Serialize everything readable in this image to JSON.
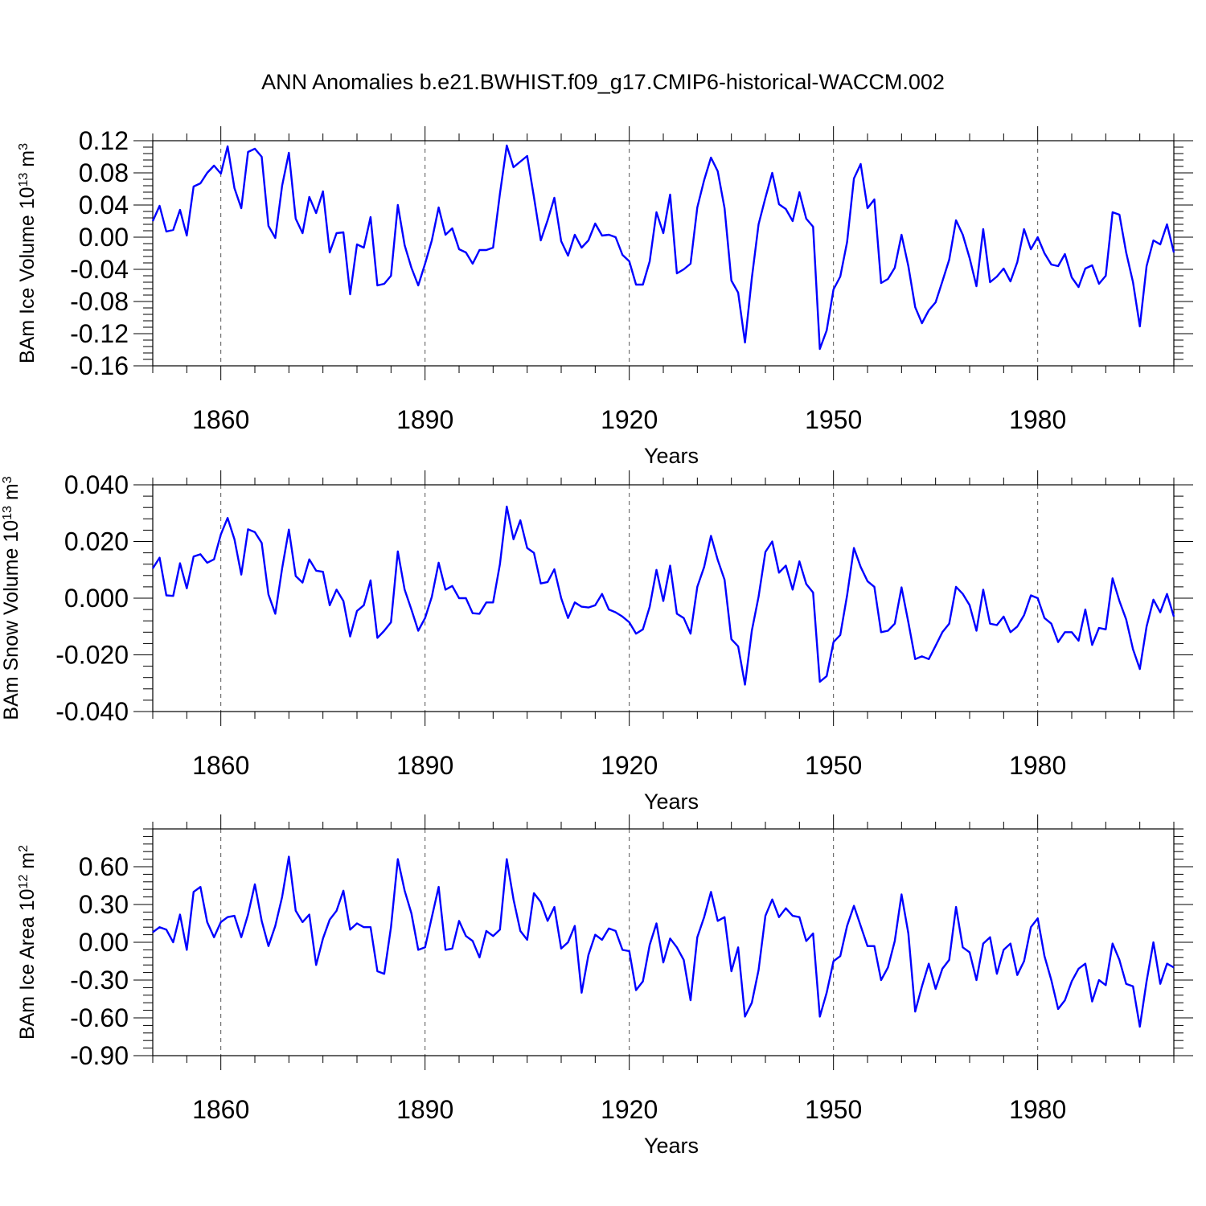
{
  "title": "ANN Anomalies b.e21.BWHIST.f09_g17.CMIP6-historical-WACCM.002",
  "colors": {
    "line": "#0000ff",
    "axis": "#000000",
    "grid": "#555555"
  },
  "chart_data": [
    {
      "type": "line",
      "name": "ice-volume",
      "ylabel_main": "BAm Ice Volume 10",
      "ylabel_sup": "13",
      "ylabel_unit": "m",
      "ylabel_unit_sup": "3",
      "xlabel": "Years",
      "xlim": [
        1850,
        2000
      ],
      "ylim": [
        -0.16,
        0.12
      ],
      "yticks": [
        -0.16,
        -0.12,
        -0.08,
        -0.04,
        0.0,
        0.04,
        0.08,
        0.12
      ],
      "ytick_labels": [
        "-0.16",
        "-0.12",
        "-0.08",
        "-0.04",
        "0.00",
        "0.04",
        "0.08",
        "0.12"
      ],
      "xticks": [
        1860,
        1890,
        1920,
        1950,
        1980
      ],
      "xtick_labels": [
        "1860",
        "1890",
        "1920",
        "1950",
        "1980"
      ],
      "x_start": 1850,
      "values": [
        0.02,
        0.039,
        0.007,
        0.009,
        0.034,
        0.002,
        0.063,
        0.067,
        0.08,
        0.089,
        0.079,
        0.113,
        0.061,
        0.036,
        0.106,
        0.11,
        0.1,
        0.014,
        -0.001,
        0.064,
        0.105,
        0.023,
        0.005,
        0.05,
        0.03,
        0.057,
        -0.019,
        0.005,
        0.006,
        -0.071,
        -0.009,
        -0.013,
        0.025,
        -0.06,
        -0.058,
        -0.048,
        0.04,
        -0.01,
        -0.038,
        -0.06,
        -0.033,
        -0.004,
        0.037,
        0.003,
        0.011,
        -0.015,
        -0.019,
        -0.033,
        -0.016,
        -0.016,
        -0.013,
        0.054,
        0.114,
        0.087,
        0.094,
        0.101,
        0.05,
        -0.004,
        0.021,
        0.049,
        -0.005,
        -0.023,
        0.003,
        -0.013,
        -0.004,
        0.017,
        0.002,
        0.003,
        0.0,
        -0.022,
        -0.03,
        -0.059,
        -0.059,
        -0.03,
        0.031,
        0.005,
        0.053,
        -0.045,
        -0.04,
        -0.033,
        0.037,
        0.071,
        0.099,
        0.082,
        0.036,
        -0.054,
        -0.069,
        -0.131,
        -0.051,
        0.016,
        0.049,
        0.08,
        0.041,
        0.035,
        0.02,
        0.056,
        0.023,
        0.013,
        -0.139,
        -0.116,
        -0.065,
        -0.049,
        -0.006,
        0.073,
        0.091,
        0.036,
        0.047,
        -0.057,
        -0.052,
        -0.038,
        0.003,
        -0.036,
        -0.087,
        -0.107,
        -0.091,
        -0.081,
        -0.055,
        -0.028,
        0.021,
        0.003,
        -0.026,
        -0.061,
        0.01,
        -0.056,
        -0.049,
        -0.039,
        -0.055,
        -0.031,
        0.01,
        -0.015,
        0.0,
        -0.02,
        -0.034,
        -0.036,
        -0.021,
        -0.05,
        -0.062,
        -0.039,
        -0.035,
        -0.058,
        -0.048,
        0.031,
        0.028,
        -0.019,
        -0.056,
        -0.111,
        -0.036,
        -0.004,
        -0.009,
        0.016,
        -0.019
      ]
    },
    {
      "type": "line",
      "name": "snow-volume",
      "ylabel_main": "BAm Snow Volume 10",
      "ylabel_sup": "13",
      "ylabel_unit": "m",
      "ylabel_unit_sup": "3",
      "xlabel": "Years",
      "xlim": [
        1850,
        2000
      ],
      "ylim": [
        -0.04,
        0.04
      ],
      "yticks": [
        -0.04,
        -0.02,
        0.0,
        0.02,
        0.04
      ],
      "ytick_labels": [
        "-0.040",
        "-0.020",
        "0.000",
        "0.020",
        "0.040"
      ],
      "xticks": [
        1860,
        1890,
        1920,
        1950,
        1980
      ],
      "xtick_labels": [
        "1860",
        "1890",
        "1920",
        "1950",
        "1980"
      ],
      "x_start": 1850,
      "values": [
        0.0105,
        0.0143,
        0.001,
        0.0008,
        0.0123,
        0.0035,
        0.0147,
        0.0155,
        0.0125,
        0.0137,
        0.0225,
        0.0283,
        0.0208,
        0.0083,
        0.0243,
        0.0233,
        0.0195,
        0.0013,
        -0.0055,
        0.0105,
        0.0242,
        0.0078,
        0.0055,
        0.0137,
        0.0097,
        0.0093,
        -0.0025,
        0.003,
        -0.001,
        -0.0135,
        -0.0045,
        -0.0025,
        0.0063,
        -0.014,
        -0.0115,
        -0.0085,
        0.0165,
        0.003,
        -0.004,
        -0.0115,
        -0.007,
        0.0005,
        0.0125,
        0.003,
        0.0043,
        0.0,
        0.0,
        -0.0053,
        -0.0055,
        -0.0015,
        -0.0015,
        0.012,
        0.0323,
        0.0208,
        0.0275,
        0.0177,
        0.016,
        0.0052,
        0.0057,
        0.0102,
        0.0,
        -0.007,
        -0.0015,
        -0.003,
        -0.0033,
        -0.0025,
        0.0015,
        -0.004,
        -0.005,
        -0.0065,
        -0.0085,
        -0.0125,
        -0.011,
        -0.003,
        0.01,
        -0.001,
        0.0115,
        -0.0055,
        -0.007,
        -0.0125,
        0.004,
        0.011,
        0.022,
        0.0135,
        0.0065,
        -0.0145,
        -0.017,
        -0.0305,
        -0.0115,
        0.0005,
        0.0163,
        0.02,
        0.009,
        0.0115,
        0.003,
        0.013,
        0.005,
        0.002,
        -0.0295,
        -0.0275,
        -0.0155,
        -0.013,
        0.001,
        0.0177,
        0.011,
        0.006,
        0.004,
        -0.012,
        -0.0115,
        -0.009,
        0.0038,
        -0.0085,
        -0.0215,
        -0.0205,
        -0.0215,
        -0.0168,
        -0.012,
        -0.009,
        0.004,
        0.0015,
        -0.0025,
        -0.0115,
        0.003,
        -0.009,
        -0.0095,
        -0.0065,
        -0.012,
        -0.01,
        -0.006,
        0.001,
        0.0,
        -0.007,
        -0.009,
        -0.0155,
        -0.012,
        -0.012,
        -0.015,
        -0.004,
        -0.0165,
        -0.0105,
        -0.011,
        0.007,
        -0.001,
        -0.0075,
        -0.018,
        -0.025,
        -0.01,
        -0.0005,
        -0.005,
        0.0015,
        -0.0065
      ]
    },
    {
      "type": "line",
      "name": "ice-area",
      "ylabel_main": "BAm Ice Area 10",
      "ylabel_sup": "12",
      "ylabel_unit": "m",
      "ylabel_unit_sup": "2",
      "xlabel": "Years",
      "xlim": [
        1850,
        2000
      ],
      "ylim": [
        -0.9,
        0.9
      ],
      "yticks": [
        -0.9,
        -0.6,
        -0.3,
        0.0,
        0.3,
        0.6
      ],
      "ytick_labels": [
        "-0.90",
        "-0.60",
        "-0.30",
        "0.00",
        "0.30",
        "0.60"
      ],
      "xticks": [
        1860,
        1890,
        1920,
        1950,
        1980
      ],
      "xtick_labels": [
        "1860",
        "1890",
        "1920",
        "1950",
        "1980"
      ],
      "x_start": 1850,
      "values": [
        0.08,
        0.12,
        0.1,
        0.0,
        0.22,
        -0.06,
        0.4,
        0.44,
        0.16,
        0.04,
        0.16,
        0.2,
        0.21,
        0.04,
        0.22,
        0.46,
        0.17,
        -0.03,
        0.13,
        0.36,
        0.68,
        0.25,
        0.16,
        0.22,
        -0.18,
        0.03,
        0.18,
        0.25,
        0.41,
        0.1,
        0.15,
        0.12,
        0.12,
        -0.23,
        -0.25,
        0.12,
        0.66,
        0.41,
        0.23,
        -0.06,
        -0.04,
        0.2,
        0.44,
        -0.06,
        -0.05,
        0.17,
        0.05,
        0.01,
        -0.12,
        0.09,
        0.05,
        0.1,
        0.66,
        0.34,
        0.09,
        0.02,
        0.39,
        0.32,
        0.17,
        0.28,
        -0.05,
        0.0,
        0.13,
        -0.4,
        -0.1,
        0.06,
        0.02,
        0.11,
        0.09,
        -0.06,
        -0.07,
        -0.38,
        -0.31,
        -0.02,
        0.15,
        -0.16,
        0.03,
        -0.04,
        -0.14,
        -0.46,
        0.04,
        0.2,
        0.4,
        0.17,
        0.2,
        -0.23,
        -0.04,
        -0.59,
        -0.48,
        -0.22,
        0.21,
        0.34,
        0.2,
        0.27,
        0.21,
        0.2,
        0.01,
        0.07,
        -0.59,
        -0.4,
        -0.15,
        -0.11,
        0.13,
        0.29,
        0.13,
        -0.03,
        -0.03,
        -0.3,
        -0.2,
        0.01,
        0.38,
        0.07,
        -0.55,
        -0.35,
        -0.17,
        -0.37,
        -0.21,
        -0.14,
        0.28,
        -0.04,
        -0.08,
        -0.3,
        -0.01,
        0.04,
        -0.25,
        -0.06,
        -0.01,
        -0.26,
        -0.15,
        0.12,
        0.19,
        -0.11,
        -0.3,
        -0.53,
        -0.46,
        -0.31,
        -0.21,
        -0.17,
        -0.47,
        -0.3,
        -0.34,
        -0.01,
        -0.14,
        -0.33,
        -0.35,
        -0.67,
        -0.31,
        0.0,
        -0.33,
        -0.17,
        -0.2
      ]
    }
  ]
}
